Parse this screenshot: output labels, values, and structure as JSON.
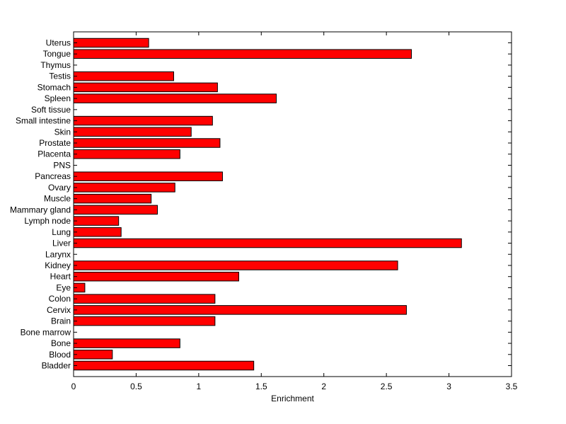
{
  "chart_data": {
    "type": "bar",
    "orientation": "horizontal",
    "xlabel": "Enrichment",
    "xlim": [
      0,
      3.5
    ],
    "xticks": [
      "0",
      "0.5",
      "1",
      "1.5",
      "2",
      "2.5",
      "3",
      "3.5"
    ],
    "grid": false,
    "bar_color": "#ff0000",
    "bar_edge_color": "#000000",
    "categories": [
      "Uterus",
      "Tongue",
      "Thymus",
      "Testis",
      "Stomach",
      "Spleen",
      "Soft tissue",
      "Small intestine",
      "Skin",
      "Prostate",
      "Placenta",
      "PNS",
      "Pancreas",
      "Ovary",
      "Muscle",
      "Mammary gland",
      "Lymph node",
      "Lung",
      "Liver",
      "Larynx",
      "Kidney",
      "Heart",
      "Eye",
      "Colon",
      "Cervix",
      "Brain",
      "Bone marrow",
      "Bone",
      "Blood",
      "Bladder"
    ],
    "values": [
      0.6,
      2.7,
      0.0,
      0.8,
      1.15,
      1.62,
      0.0,
      1.11,
      0.94,
      1.17,
      0.85,
      0.0,
      1.19,
      0.81,
      0.62,
      0.67,
      0.36,
      0.38,
      3.1,
      0.0,
      2.59,
      1.32,
      0.09,
      1.13,
      2.66,
      1.13,
      0.0,
      0.85,
      0.31,
      1.44
    ]
  }
}
